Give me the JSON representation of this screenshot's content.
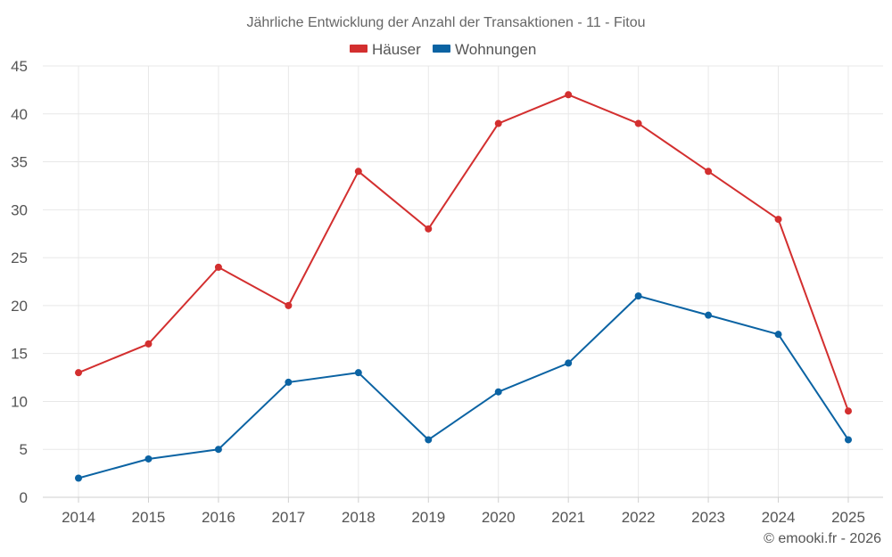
{
  "chart_data": {
    "type": "line",
    "title": "Jährliche Entwicklung der Anzahl der Transaktionen - 11 - Fitou",
    "xlabel": "",
    "ylabel": "",
    "categories": [
      "2014",
      "2015",
      "2016",
      "2017",
      "2018",
      "2019",
      "2020",
      "2021",
      "2022",
      "2023",
      "2024",
      "2025"
    ],
    "series": [
      {
        "name": "Häuser",
        "color": "#d32f2f",
        "values": [
          13,
          16,
          24,
          20,
          34,
          28,
          39,
          42,
          39,
          34,
          29,
          9
        ]
      },
      {
        "name": "Wohnungen",
        "color": "#0b63a3",
        "values": [
          2,
          4,
          5,
          12,
          13,
          6,
          11,
          14,
          21,
          19,
          17,
          6
        ]
      }
    ],
    "ylim": [
      0,
      45
    ],
    "yticks": [
      0,
      5,
      10,
      15,
      20,
      25,
      30,
      35,
      40,
      45
    ],
    "grid": true,
    "legend_position": "top-center"
  },
  "credit": {
    "text": "© emooki.fr - 2026"
  }
}
